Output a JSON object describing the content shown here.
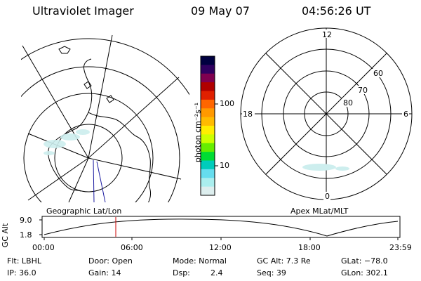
{
  "header": {
    "instrument": "Ultraviolet Imager",
    "date": "09 May 07",
    "time": "04:56:26 UT"
  },
  "colorbar": {
    "label": "photon cm⁻²s⁻¹",
    "ticks": [
      "100",
      "10"
    ],
    "colors": [
      "#000040",
      "#300060",
      "#800050",
      "#b00000",
      "#e02000",
      "#ff6600",
      "#ff9900",
      "#ffbb00",
      "#ffee00",
      "#ccff00",
      "#66ee00",
      "#00dd33",
      "#00ccbb",
      "#66ddee",
      "#aaeeee",
      "#ddeeee"
    ]
  },
  "left_panel": {
    "label": "Geographic Lat/Lon"
  },
  "right_panel": {
    "label": "Apex MLat/MLT",
    "mlt_labels": {
      "top": "12",
      "left": "18",
      "right": "6",
      "bottom": "0"
    },
    "mlat_labels": [
      "60",
      "70",
      "80"
    ]
  },
  "timeline": {
    "ylabel": "GC Alt",
    "yticks": [
      "9.0",
      "1.8"
    ],
    "xticks": [
      "00:00",
      "06:00",
      "12:00",
      "18:00",
      "23:59"
    ],
    "current_marker_color": "#cc0000"
  },
  "info": {
    "flt": "Flt: LBHL",
    "ip": "IP: 36.0",
    "door": "Door: Open",
    "gain": "Gain: 14",
    "mode": "Mode: Normal",
    "dsp_label": "Dsp:",
    "dsp_value": "2.4",
    "gc_alt": "GC Alt: 7.3 Re",
    "seq": "Seq: 39",
    "glat": "GLat: −78.0",
    "glon": "GLon: 302.1"
  }
}
